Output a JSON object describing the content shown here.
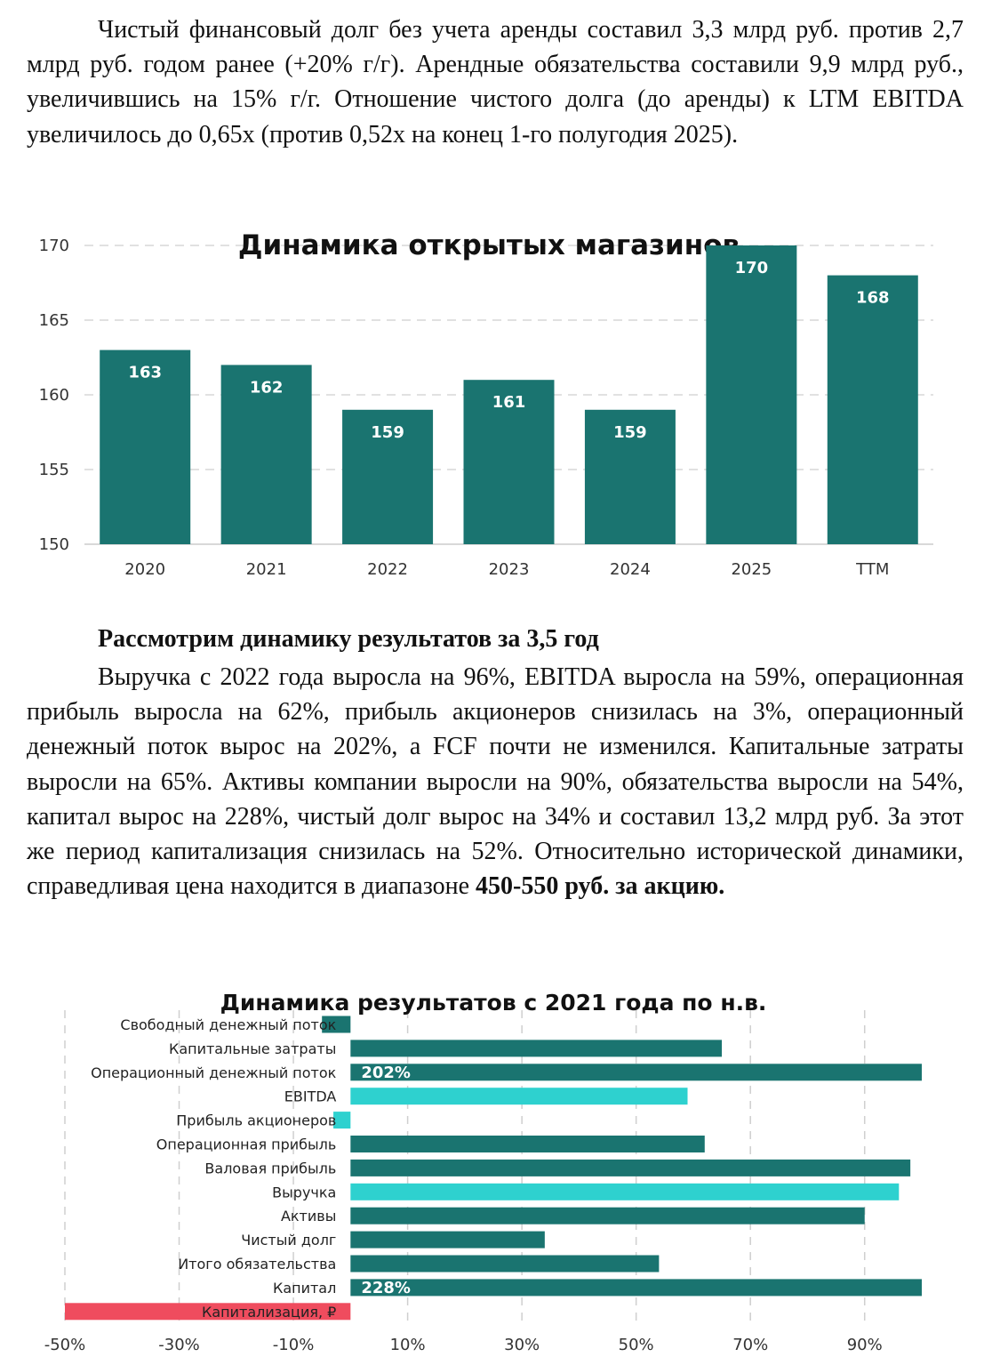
{
  "paragraph_1": {
    "text": "Чистый финансовый долг без учета аренды составил 3,3 млрд руб. против 2,7 млрд руб. годом ранее (+20% г/г). Арендные обязательства составили 9,9 млрд руб., увеличившись на 15% г/г. Отношение чистого долга (до аренды) к LTM EBITDA увеличилось до 0,65x (против 0,52x на конец 1-го полугодия 2025)."
  },
  "section_heading": "Рассмотрим динамику результатов за 3,5 год",
  "paragraph_2": {
    "text": "Выручка с 2022 года выросла на 96%, EBITDA выросла на 59%, операционная прибыль выросла на 62%, прибыль акционеров снизилась на 3%, операционный денежный поток вырос на 202%, а FCF почти не изменился. Капитальные затраты выросли на 65%. Активы компании выросли на 90%, обязательства выросли на 54%, капитал вырос на 228%, чистый долг вырос на 34% и составил 13,2 млрд руб. За этот же период капитализация снизилась на 52%. Относительно исторической динамики, справедливая цена находится в диапазоне ",
    "bold_tail": "450-550 руб. за акцию."
  },
  "chart_data": [
    {
      "type": "bar",
      "title": "Динамика открытых магазинов",
      "categories": [
        "2020",
        "2021",
        "2022",
        "2023",
        "2024",
        "2025",
        "TTM"
      ],
      "values": [
        163,
        162,
        159,
        161,
        159,
        170,
        168
      ],
      "data_labels": [
        "163",
        "162",
        "159",
        "161",
        "159",
        "170",
        "168"
      ],
      "ylim": [
        150,
        170
      ],
      "yticks": [
        150,
        155,
        160,
        165,
        170
      ],
      "ytick_labels": [
        "150",
        "155",
        "160",
        "165",
        "170"
      ],
      "grid": "dashed horizontal",
      "bar_color": "#1a7470"
    },
    {
      "type": "bar",
      "orientation": "horizontal",
      "title": "Динамика результатов с 2021 года по н.в.",
      "categories": [
        "Свободный денежный поток",
        "Капитальные затраты",
        "Операционный денежный поток",
        "EBITDA",
        "Прибыль акционеров",
        "Операционная прибыль",
        "Валовая прибыль",
        "Выручка",
        "Активы",
        "Чистый долг",
        "Итого обязательства",
        "Капитал",
        "Капитализация, ₽"
      ],
      "values": [
        -5,
        65,
        202,
        59,
        -3,
        62,
        98,
        96,
        90,
        34,
        54,
        228,
        -52
      ],
      "data_labels": [
        "",
        "",
        "202%",
        "",
        "",
        "",
        "",
        "",
        "",
        "",
        "",
        "228%",
        ""
      ],
      "colors": [
        "#1a7470",
        "#1a7470",
        "#1a7470",
        "#2ed1cf",
        "#2ed1cf",
        "#1a7470",
        "#1a7470",
        "#2ed1cf",
        "#1a7470",
        "#1a7470",
        "#1a7470",
        "#1a7470",
        "#ef4c5e"
      ],
      "xlim": [
        -50,
        100
      ],
      "xticks": [
        -50,
        -30,
        -10,
        10,
        30,
        50,
        70,
        90
      ],
      "xtick_labels": [
        "-50%",
        "-30%",
        "-10%",
        "10%",
        "30%",
        "50%",
        "70%",
        "90%"
      ],
      "grid": "dashed vertical"
    }
  ]
}
